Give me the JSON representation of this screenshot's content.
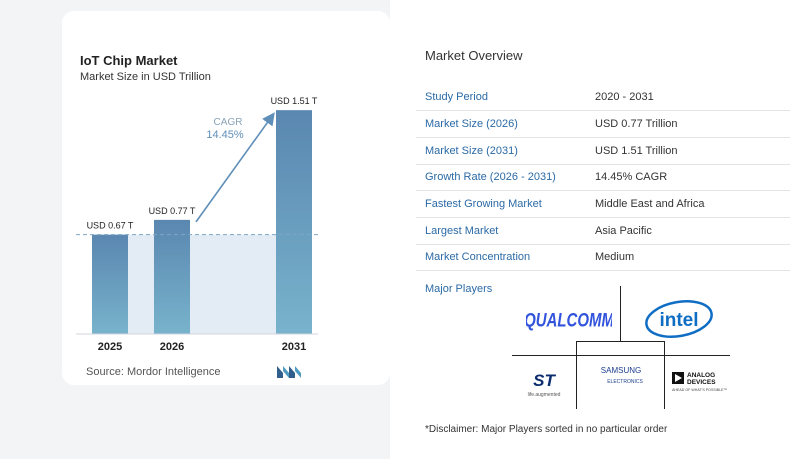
{
  "chart": {
    "title": "IoT Chip Market",
    "subtitle": "Market Size in USD Trillion",
    "source": "Source:  Mordor Intelligence",
    "cagr_label": "CAGR",
    "cagr_value": "14.45%"
  },
  "chart_data": {
    "type": "bar",
    "categories": [
      "2025",
      "2026",
      "2031"
    ],
    "values": [
      0.67,
      0.77,
      1.51
    ],
    "value_labels": [
      "USD 0.67 T",
      "USD 0.77 T",
      "USD 1.51 T"
    ],
    "title": "IoT Chip Market",
    "subtitle": "Market Size in USD Trillion",
    "xlabel": "",
    "ylabel": "",
    "ylim": [
      0,
      1.6
    ],
    "grid": false,
    "reference_line_value": 0.67,
    "annotation": {
      "text": "CAGR 14.45%",
      "from_category": "2026",
      "to_category": "2031"
    }
  },
  "overview": {
    "title": "Market Overview",
    "rows": [
      {
        "label": "Study Period",
        "value": "2020 - 2031"
      },
      {
        "label": "Market Size (2026)",
        "value": "USD 0.77 Trillion"
      },
      {
        "label": "Market Size (2031)",
        "value": "USD 1.51 Trillion"
      },
      {
        "label": "Growth Rate (2026 - 2031)",
        "value": "14.45% CAGR"
      },
      {
        "label": "Fastest Growing Market",
        "value": "Middle East and Africa"
      },
      {
        "label": "Largest Market",
        "value": "Asia Pacific"
      },
      {
        "label": "Market Concentration",
        "value": "Medium"
      }
    ]
  },
  "players": {
    "title": "Major Players",
    "logos": [
      "QUALCOMM",
      "intel",
      "ST",
      "SAMSUNG",
      "ANALOG DEVICES"
    ],
    "st_tagline": "life.augmented",
    "samsung_sub": "ELECTRONICS",
    "adi_tagline": "AHEAD OF WHAT'S POSSIBLE™"
  },
  "disclaimer": "*Disclaimer: Major Players sorted in no particular order",
  "colors": {
    "bar": "#5f8fb8",
    "bar_light": "#6fa8c8",
    "label": "#2b6aa6",
    "arrow": "#5f8fb8"
  }
}
